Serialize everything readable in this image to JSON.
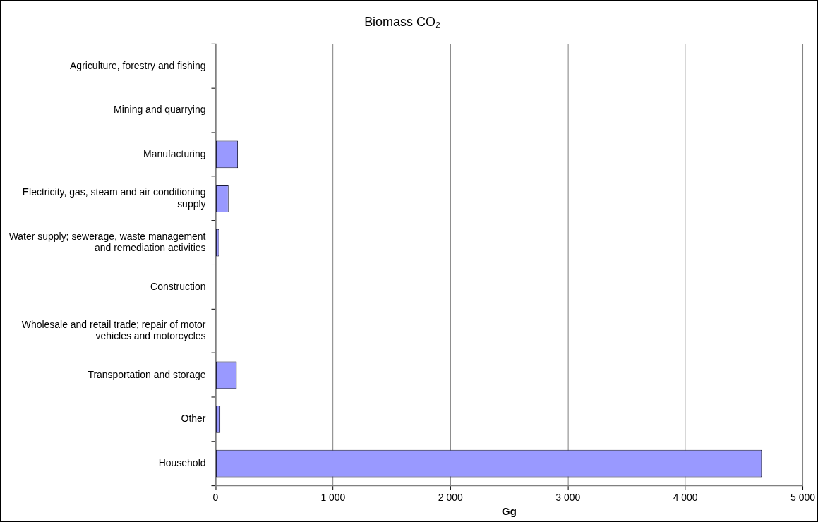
{
  "chart_data": {
    "type": "bar",
    "orientation": "horizontal",
    "title": "Biomass CO₂",
    "xlabel": "Gg",
    "categories": [
      "Agriculture, forestry and fishing",
      "Mining and quarrying",
      "Manufacturing",
      "Electricity, gas, steam and air conditioning supply",
      "Water supply; sewerage, waste management and remediation activities",
      "Construction",
      "Wholesale and retail trade; repair of motor vehicles and motorcycles",
      "Transportation and storage",
      "Other",
      "Household"
    ],
    "values": [
      0,
      0,
      190,
      110,
      30,
      0,
      0,
      180,
      40,
      4650
    ],
    "color": "#9999ff",
    "xlim": [
      0,
      5000
    ],
    "xticks": [
      0,
      {
        "value": 1000,
        "label": "1 000"
      },
      {
        "value": 2000,
        "label": "2 000"
      },
      {
        "value": 3000,
        "label": "3 000"
      },
      {
        "value": 4000,
        "label": "4 000"
      },
      {
        "value": 5000,
        "label": "5 000"
      }
    ],
    "grid": "x",
    "legend": false
  }
}
